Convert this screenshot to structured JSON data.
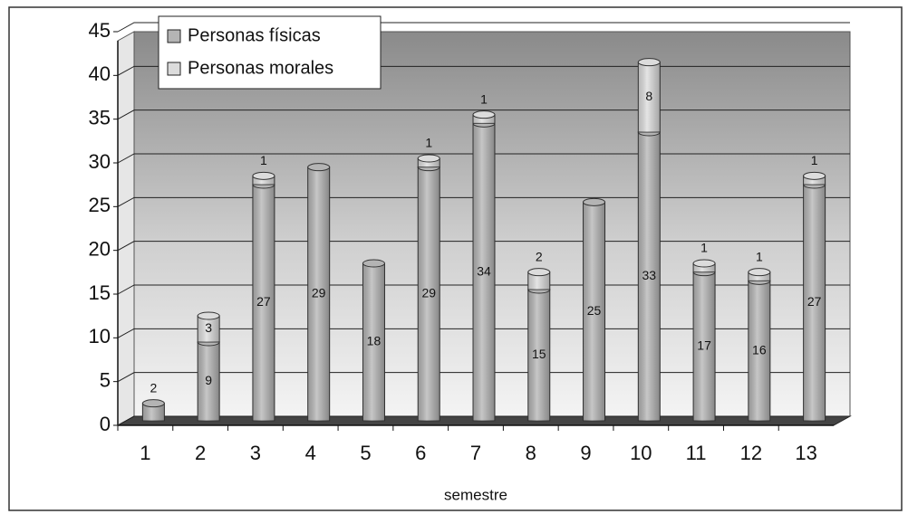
{
  "chart_data": {
    "type": "bar3d_stacked",
    "x_label": "semestre",
    "categories": [
      "1",
      "2",
      "3",
      "4",
      "5",
      "6",
      "7",
      "8",
      "9",
      "10",
      "11",
      "12",
      "13"
    ],
    "series": [
      {
        "name": "Personas físicas",
        "color": "#b4b4b4",
        "values": [
          2,
          9,
          27,
          29,
          18,
          29,
          34,
          15,
          25,
          33,
          17,
          16,
          27
        ]
      },
      {
        "name": "Personas morales",
        "color": "#dcdcdc",
        "values": [
          null,
          3,
          1,
          null,
          null,
          1,
          1,
          2,
          null,
          8,
          1,
          1,
          1
        ]
      }
    ],
    "ylim": [
      0,
      45
    ],
    "yticks": [
      0,
      5,
      10,
      15,
      20,
      25,
      30,
      35,
      40,
      45
    ],
    "grid": true,
    "legend": "top-left"
  }
}
